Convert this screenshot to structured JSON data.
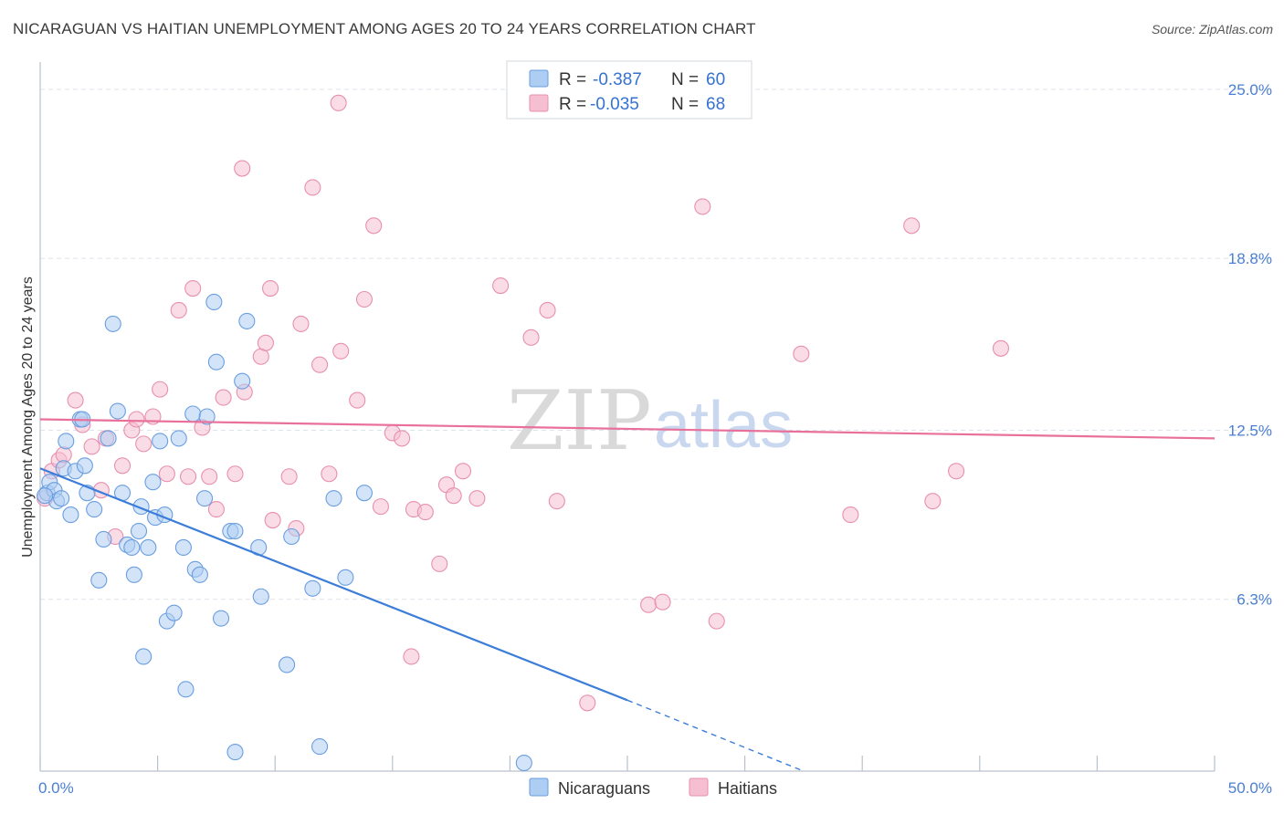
{
  "title": "NICARAGUAN VS HAITIAN UNEMPLOYMENT AMONG AGES 20 TO 24 YEARS CORRELATION CHART",
  "source": "Source: ZipAtlas.com",
  "watermark": {
    "zip": "ZIP",
    "atlas": "atlas"
  },
  "colors": {
    "blue": "#3b7dd8",
    "pink": "#e8709a",
    "blue_fill": "#aecdf2",
    "pink_fill": "#f6bfd1",
    "grid": "#dde3ea",
    "axis_label": "#4a7fd4"
  },
  "legend": {
    "rows": [
      {
        "series": "Nicaraguans",
        "r_label": "R =",
        "r_value": "-0.387",
        "n_label": "N =",
        "n_value": "60"
      },
      {
        "series": "Haitians",
        "r_label": "R =",
        "r_value": "-0.035",
        "n_label": "N =",
        "n_value": "68"
      }
    ]
  },
  "chart_data": {
    "type": "scatter",
    "title": "NICARAGUAN VS HAITIAN UNEMPLOYMENT AMONG AGES 20 TO 24 YEARS CORRELATION CHART",
    "xlabel": "",
    "ylabel": "Unemployment Among Ages 20 to 24 years",
    "xlim": [
      0,
      50
    ],
    "ylim": [
      0,
      26
    ],
    "x_tick_labels": [
      "0.0%",
      "50.0%"
    ],
    "y_ticks": [
      6.3,
      12.5,
      18.8,
      25.0
    ],
    "y_tick_labels": [
      "6.3%",
      "12.5%",
      "18.8%",
      "25.0%"
    ],
    "grid": true,
    "legend_position": "top-center",
    "series": [
      {
        "name": "Nicaraguans",
        "color": "#3b7dd8",
        "r": -0.387,
        "n": 60,
        "trend": {
          "x_start": 0,
          "y_start": 11.1,
          "x_solid_end": 25,
          "y_solid_end": 2.6,
          "x_dash_end": 32.5,
          "y_dash_end": 0.0
        },
        "points": [
          [
            0.3,
            10.2
          ],
          [
            0.4,
            10.6
          ],
          [
            0.6,
            10.3
          ],
          [
            0.7,
            9.9
          ],
          [
            0.9,
            10.0
          ],
          [
            1.0,
            11.1
          ],
          [
            1.1,
            12.1
          ],
          [
            1.3,
            9.4
          ],
          [
            1.5,
            11.0
          ],
          [
            1.7,
            12.9
          ],
          [
            1.9,
            11.2
          ],
          [
            2.0,
            10.2
          ],
          [
            2.3,
            9.6
          ],
          [
            2.5,
            7.0
          ],
          [
            2.7,
            8.5
          ],
          [
            2.9,
            12.2
          ],
          [
            3.1,
            16.4
          ],
          [
            3.3,
            13.2
          ],
          [
            3.5,
            10.2
          ],
          [
            3.7,
            8.3
          ],
          [
            3.9,
            8.2
          ],
          [
            4.0,
            7.2
          ],
          [
            4.2,
            8.8
          ],
          [
            4.3,
            9.7
          ],
          [
            4.4,
            4.2
          ],
          [
            4.6,
            8.2
          ],
          [
            4.8,
            10.6
          ],
          [
            4.9,
            9.3
          ],
          [
            5.1,
            12.1
          ],
          [
            5.3,
            9.4
          ],
          [
            5.4,
            5.5
          ],
          [
            5.7,
            5.8
          ],
          [
            5.9,
            12.2
          ],
          [
            6.1,
            8.2
          ],
          [
            6.2,
            3.0
          ],
          [
            6.5,
            13.1
          ],
          [
            6.6,
            7.4
          ],
          [
            6.8,
            7.2
          ],
          [
            7.0,
            10.0
          ],
          [
            7.1,
            13.0
          ],
          [
            7.4,
            17.2
          ],
          [
            7.5,
            15.0
          ],
          [
            7.7,
            5.6
          ],
          [
            8.1,
            8.8
          ],
          [
            8.3,
            8.8
          ],
          [
            8.3,
            0.7
          ],
          [
            8.6,
            14.3
          ],
          [
            8.8,
            16.5
          ],
          [
            9.3,
            8.2
          ],
          [
            9.4,
            6.4
          ],
          [
            10.5,
            3.9
          ],
          [
            10.7,
            8.6
          ],
          [
            11.6,
            6.7
          ],
          [
            11.9,
            0.9
          ],
          [
            12.5,
            10.0
          ],
          [
            13.0,
            7.1
          ],
          [
            13.8,
            10.2
          ],
          [
            20.6,
            0.3
          ],
          [
            1.8,
            12.9
          ],
          [
            0.2,
            10.1
          ]
        ]
      },
      {
        "name": "Haitians",
        "color": "#e8709a",
        "r": -0.035,
        "n": 68,
        "trend": {
          "x_start": 0,
          "y_start": 12.9,
          "x_end": 50,
          "y_end": 12.2
        },
        "points": [
          [
            0.2,
            10.0
          ],
          [
            0.5,
            11.0
          ],
          [
            0.8,
            11.4
          ],
          [
            1.0,
            11.6
          ],
          [
            1.5,
            13.6
          ],
          [
            1.8,
            12.7
          ],
          [
            2.2,
            11.9
          ],
          [
            2.6,
            10.3
          ],
          [
            2.8,
            12.2
          ],
          [
            3.2,
            8.6
          ],
          [
            3.5,
            11.2
          ],
          [
            3.9,
            12.5
          ],
          [
            4.1,
            12.9
          ],
          [
            4.4,
            12.0
          ],
          [
            4.8,
            13.0
          ],
          [
            5.1,
            14.0
          ],
          [
            5.4,
            10.9
          ],
          [
            5.9,
            16.9
          ],
          [
            6.3,
            10.8
          ],
          [
            6.5,
            17.7
          ],
          [
            6.9,
            12.6
          ],
          [
            7.2,
            10.8
          ],
          [
            7.5,
            9.6
          ],
          [
            7.8,
            13.7
          ],
          [
            8.3,
            10.9
          ],
          [
            8.7,
            13.9
          ],
          [
            9.4,
            15.2
          ],
          [
            9.6,
            15.7
          ],
          [
            9.8,
            17.7
          ],
          [
            9.9,
            9.2
          ],
          [
            10.6,
            10.8
          ],
          [
            10.9,
            8.9
          ],
          [
            11.1,
            16.4
          ],
          [
            11.6,
            21.4
          ],
          [
            11.9,
            14.9
          ],
          [
            12.3,
            10.9
          ],
          [
            12.7,
            24.5
          ],
          [
            12.8,
            15.4
          ],
          [
            13.5,
            13.6
          ],
          [
            13.8,
            17.3
          ],
          [
            14.2,
            20.0
          ],
          [
            14.5,
            9.7
          ],
          [
            15.0,
            12.4
          ],
          [
            15.4,
            12.2
          ],
          [
            15.8,
            4.2
          ],
          [
            15.9,
            9.6
          ],
          [
            16.4,
            9.5
          ],
          [
            17.0,
            7.6
          ],
          [
            17.3,
            10.5
          ],
          [
            17.6,
            10.1
          ],
          [
            18.0,
            11.0
          ],
          [
            18.6,
            10.0
          ],
          [
            19.6,
            17.8
          ],
          [
            20.9,
            15.9
          ],
          [
            21.6,
            16.9
          ],
          [
            22.0,
            9.9
          ],
          [
            23.3,
            2.5
          ],
          [
            25.9,
            6.1
          ],
          [
            26.5,
            6.2
          ],
          [
            28.2,
            20.7
          ],
          [
            28.8,
            5.5
          ],
          [
            32.4,
            15.3
          ],
          [
            34.5,
            9.4
          ],
          [
            37.1,
            20.0
          ],
          [
            38.0,
            9.9
          ],
          [
            39.0,
            11.0
          ],
          [
            40.9,
            15.5
          ],
          [
            8.6,
            22.1
          ]
        ]
      }
    ]
  }
}
